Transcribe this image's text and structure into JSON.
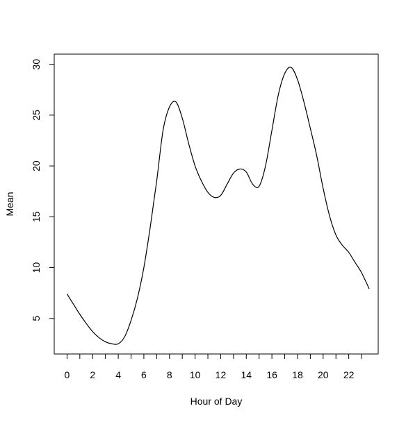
{
  "chart_data": {
    "type": "line",
    "title": "",
    "xlabel": "Hour of Day",
    "ylabel": "Mean",
    "xlim": [
      -1,
      24.3
    ],
    "ylim": [
      1.5,
      31
    ],
    "x_ticks": [
      0,
      1,
      2,
      3,
      4,
      5,
      6,
      7,
      8,
      9,
      10,
      11,
      12,
      13,
      14,
      15,
      16,
      17,
      18,
      19,
      20,
      21,
      22,
      23
    ],
    "x_tick_labels": [
      "0",
      "",
      "2",
      "",
      "4",
      "",
      "6",
      "",
      "8",
      "",
      "10",
      "",
      "12",
      "",
      "14",
      "",
      "16",
      "",
      "18",
      "",
      "20",
      "",
      "22",
      ""
    ],
    "y_ticks": [
      5,
      10,
      15,
      20,
      25,
      30
    ],
    "y_tick_labels": [
      "5",
      "10",
      "15",
      "20",
      "25",
      "30"
    ],
    "grid": false,
    "line_color": "#000000",
    "series": [
      {
        "x": [
          0,
          0.5,
          1,
          1.5,
          2,
          2.5,
          3,
          3.5,
          4,
          4.5,
          5,
          5.5,
          6,
          6.5,
          7,
          7.5,
          8,
          8.5,
          9,
          9.5,
          10,
          10.5,
          11,
          11.5,
          12,
          12.5,
          13,
          13.5,
          14,
          14.5,
          15,
          15.5,
          16,
          16.5,
          17,
          17.5,
          18,
          18.5,
          19,
          19.5,
          20,
          20.5,
          21,
          21.5,
          22,
          22.5,
          23,
          23.6
        ],
        "values": [
          7.4,
          6.4,
          5.4,
          4.5,
          3.7,
          3.1,
          2.7,
          2.5,
          2.5,
          3.2,
          4.8,
          7.0,
          10.0,
          14.0,
          18.5,
          23.5,
          25.8,
          26.3,
          24.7,
          22.2,
          20.0,
          18.5,
          17.4,
          16.9,
          17.1,
          18.2,
          19.3,
          19.7,
          19.4,
          18.2,
          18.0,
          20.0,
          23.5,
          27.0,
          29.1,
          29.7,
          28.5,
          26.3,
          23.7,
          21.0,
          17.8,
          15.1,
          13.2,
          12.2,
          11.5,
          10.5,
          9.5,
          7.9
        ]
      }
    ]
  }
}
